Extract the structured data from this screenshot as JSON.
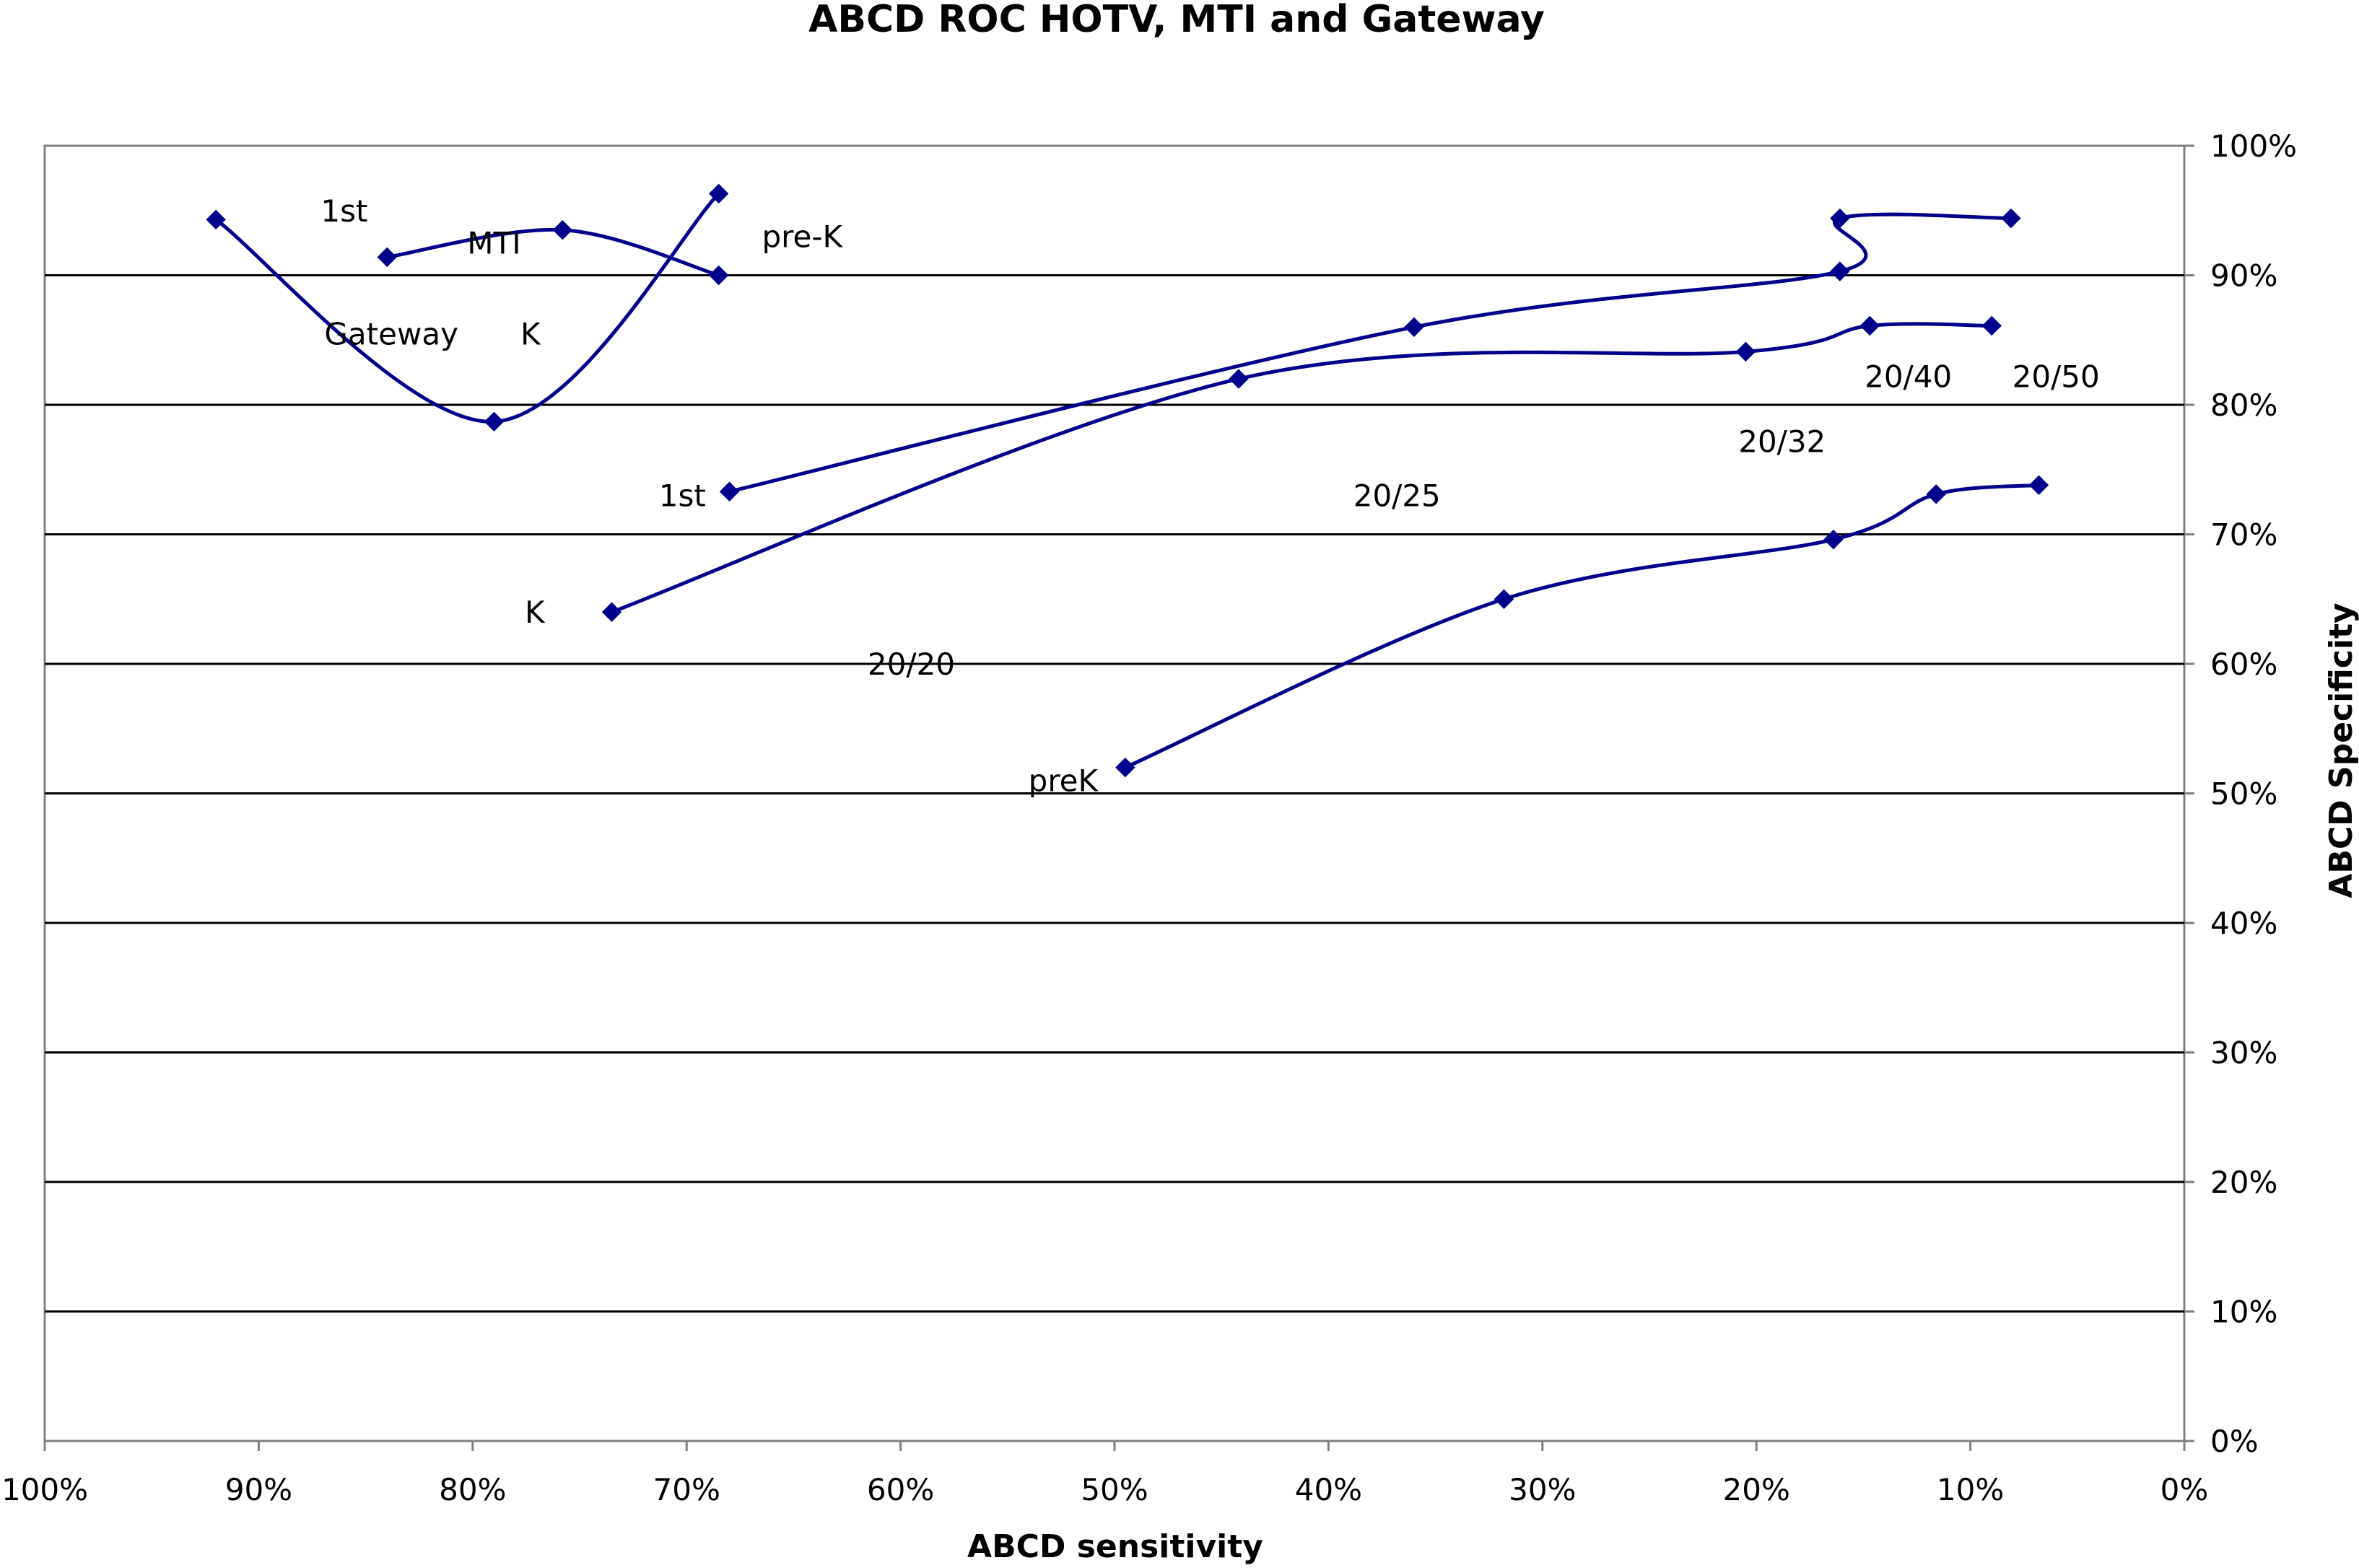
{
  "chart_data": {
    "type": "line",
    "title": "ABCD ROC HOTV, MTI and Gateway",
    "xlabel": "ABCD sensitivity",
    "ylabel": "ABCD Specificity",
    "xlim": [
      1.0,
      0.0
    ],
    "ylim": [
      0.0,
      1.0
    ],
    "x_reversed": true,
    "y_axis_position": "right",
    "grid": "horizontal",
    "x_tick_labels": [
      "100%",
      "90%",
      "80%",
      "70%",
      "60%",
      "50%",
      "40%",
      "30%",
      "20%",
      "10%",
      "0%"
    ],
    "y_tick_labels": [
      "0%",
      "10%",
      "20%",
      "30%",
      "40%",
      "50%",
      "60%",
      "70%",
      "80%",
      "90%",
      "100%"
    ],
    "colors": {
      "series": "#00008B",
      "grid": "#000000",
      "frame": "#808080"
    },
    "series": [
      {
        "x": [
          0.92,
          0.79,
          0.685
        ],
        "y": [
          0.943,
          0.787,
          0.963
        ]
      },
      {
        "x": [
          0.84,
          0.758,
          0.685
        ],
        "y": [
          0.914,
          0.935,
          0.9
        ]
      },
      {
        "x": [
          0.68,
          0.36,
          0.161,
          0.161,
          0.081
        ],
        "y": [
          0.733,
          0.86,
          0.903,
          0.944,
          0.944
        ]
      },
      {
        "x": [
          0.735,
          0.442,
          0.205,
          0.147,
          0.09
        ],
        "y": [
          0.64,
          0.82,
          0.841,
          0.861,
          0.861
        ]
      },
      {
        "x": [
          0.495,
          0.318,
          0.164,
          0.116,
          0.068
        ],
        "y": [
          0.52,
          0.65,
          0.696,
          0.731,
          0.738
        ]
      }
    ],
    "annotations": [
      {
        "text": "1st",
        "x": 0.86,
        "y": 0.95
      },
      {
        "text": "MTI",
        "x": 0.79,
        "y": 0.925
      },
      {
        "text": "pre-K",
        "x": 0.646,
        "y": 0.93
      },
      {
        "text": "Gateway",
        "x": 0.838,
        "y": 0.855
      },
      {
        "text": "K",
        "x": 0.773,
        "y": 0.855
      },
      {
        "text": "1st",
        "x": 0.702,
        "y": 0.73
      },
      {
        "text": "K",
        "x": 0.771,
        "y": 0.64
      },
      {
        "text": "20/20",
        "x": 0.595,
        "y": 0.6
      },
      {
        "text": "20/25",
        "x": 0.368,
        "y": 0.73
      },
      {
        "text": "20/32",
        "x": 0.188,
        "y": 0.772
      },
      {
        "text": "20/40",
        "x": 0.129,
        "y": 0.822
      },
      {
        "text": "20/50",
        "x": 0.06,
        "y": 0.822
      },
      {
        "text": "preK",
        "x": 0.524,
        "y": 0.51
      }
    ]
  }
}
